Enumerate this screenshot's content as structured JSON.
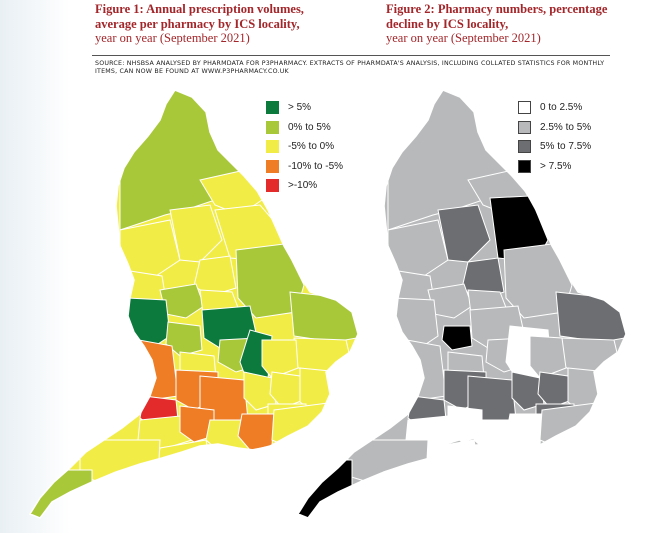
{
  "figure1": {
    "title": "Figure 1: Annual prescription volumes, average per pharmacy by ICS locality,",
    "subtitle": "year on year (September 2021)",
    "legend": [
      {
        "label": "> 5%",
        "color": "#0c7a3c"
      },
      {
        "label": "0% to 5%",
        "color": "#a8c83a"
      },
      {
        "label": "-5% to 0%",
        "color": "#f2ec46"
      },
      {
        "label": "-10% to -5%",
        "color": "#ee7d25"
      },
      {
        "label": ">-10%",
        "color": "#e32b2b"
      }
    ]
  },
  "figure2": {
    "title": "Figure 2: Pharmacy numbers, percentage decline by ICS locality,",
    "subtitle": "year on year (September 2021)",
    "legend": [
      {
        "label": "0 to 2.5%",
        "color": "#ffffff"
      },
      {
        "label": "2.5% to 5%",
        "color": "#b8b9bb"
      },
      {
        "label": "5% to 7.5%",
        "color": "#6d6e71"
      },
      {
        "label": "> 7.5%",
        "color": "#000000"
      }
    ]
  },
  "source": "SOURCE: NHSBSA ANALYSED BY PHARMDATA FOR P3PHARMACY. EXTRACTS OF PHARMDATA'S ANALYSIS, INCLUDING COLLATED STATISTICS FOR MONTHLY ITEMS, CAN NOW BE FOUND AT WWW.P3PHARMACY.CO.UK"
}
